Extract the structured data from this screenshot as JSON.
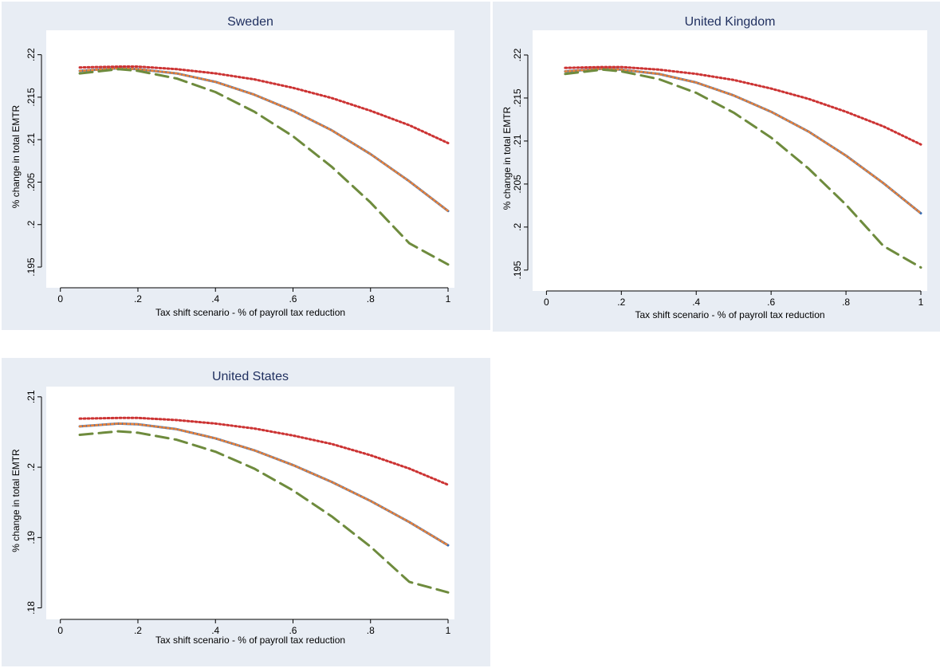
{
  "chart_data": [
    {
      "type": "line",
      "title": "Sweden",
      "xlabel": "Tax shift scenario - % of payroll tax reduction",
      "ylabel": "% change in total EMTR",
      "xlim": [
        -0.02,
        1.0
      ],
      "ylim": [
        0.1935,
        0.2225
      ],
      "xticks": [
        0,
        0.2,
        0.4,
        0.6,
        0.8,
        1
      ],
      "xtick_labels": [
        "0",
        ".2",
        ".4",
        ".6",
        ".8",
        "1"
      ],
      "yticks": [
        0.195,
        0.2,
        0.205,
        0.21,
        0.215,
        0.22
      ],
      "ytick_labels": [
        ".195",
        ".2",
        ".205",
        ".21",
        ".215",
        ".22"
      ],
      "grid": false,
      "x": [
        0.05,
        0.15,
        0.2,
        0.3,
        0.4,
        0.5,
        0.6,
        0.7,
        0.8,
        0.9,
        1.0
      ],
      "series": [
        {
          "style": "solid",
          "color": "#3a6fb5",
          "values": [
            0.2181,
            0.2184,
            0.2183,
            0.2178,
            0.2168,
            0.2153,
            0.2134,
            0.2111,
            0.2083,
            0.2051,
            0.2016
          ]
        },
        {
          "style": "dot-overlay",
          "color": "#e8823a",
          "values": [
            0.2181,
            0.2184,
            0.2183,
            0.2178,
            0.2168,
            0.2153,
            0.2134,
            0.2111,
            0.2083,
            0.2051,
            0.2016
          ]
        },
        {
          "style": "dash",
          "color": "#6e8b3d",
          "values": [
            0.2178,
            0.2183,
            0.2181,
            0.2172,
            0.2156,
            0.2133,
            0.2104,
            0.2068,
            0.2026,
            0.1978,
            0.1953
          ]
        },
        {
          "style": "dot",
          "color": "#cc3333",
          "values": [
            0.2185,
            0.2186,
            0.2186,
            0.2183,
            0.2178,
            0.2171,
            0.2161,
            0.2149,
            0.2134,
            0.2117,
            0.2096
          ]
        }
      ]
    },
    {
      "type": "line",
      "title": "United Kingdom",
      "xlabel": "Tax shift scenario - % of payroll tax reduction",
      "ylabel": "% change in total EMTR",
      "xlim": [
        -0.02,
        1.0
      ],
      "ylim": [
        0.1935,
        0.2225
      ],
      "xticks": [
        0,
        0.2,
        0.4,
        0.6,
        0.8,
        1
      ],
      "xtick_labels": [
        "0",
        ".2",
        ".4",
        ".6",
        ".8",
        "1"
      ],
      "yticks": [
        0.195,
        0.2,
        0.205,
        0.21,
        0.215,
        0.22
      ],
      "ytick_labels": [
        ".195",
        ".2",
        ".205",
        ".21",
        ".215",
        ".22"
      ],
      "grid": false,
      "x": [
        0.05,
        0.15,
        0.2,
        0.3,
        0.4,
        0.5,
        0.6,
        0.7,
        0.8,
        0.9,
        1.0
      ],
      "series": [
        {
          "style": "solid",
          "color": "#3a6fb5",
          "values": [
            0.2181,
            0.2184,
            0.2183,
            0.2178,
            0.2168,
            0.2153,
            0.2134,
            0.2111,
            0.2083,
            0.2051,
            0.2016
          ]
        },
        {
          "style": "dot-overlay",
          "color": "#e8823a",
          "values": [
            0.2181,
            0.2184,
            0.2183,
            0.2178,
            0.2168,
            0.2153,
            0.2134,
            0.2111,
            0.2083,
            0.2051,
            0.2016
          ]
        },
        {
          "style": "dash",
          "color": "#6e8b3d",
          "values": [
            0.2178,
            0.2183,
            0.2181,
            0.2172,
            0.2156,
            0.2133,
            0.2104,
            0.2068,
            0.2026,
            0.1978,
            0.1953
          ]
        },
        {
          "style": "dot",
          "color": "#cc3333",
          "values": [
            0.2185,
            0.2186,
            0.2186,
            0.2183,
            0.2178,
            0.2171,
            0.2161,
            0.2149,
            0.2134,
            0.2117,
            0.2096
          ]
        }
      ]
    },
    {
      "type": "line",
      "title": "United States",
      "xlabel": "Tax shift scenario - % of payroll tax reduction",
      "ylabel": "% change in total EMTR",
      "xlim": [
        -0.02,
        1.0
      ],
      "ylim": [
        0.1795,
        0.211
      ],
      "xticks": [
        0,
        0.2,
        0.4,
        0.6,
        0.8,
        1
      ],
      "xtick_labels": [
        "0",
        ".2",
        ".4",
        ".6",
        ".8",
        "1"
      ],
      "yticks": [
        0.18,
        0.19,
        0.2,
        0.21
      ],
      "ytick_labels": [
        ".18",
        ".19",
        ".2",
        ".21"
      ],
      "grid": false,
      "x": [
        0.05,
        0.15,
        0.2,
        0.3,
        0.4,
        0.5,
        0.6,
        0.7,
        0.8,
        0.9,
        1.0
      ],
      "series": [
        {
          "style": "solid",
          "color": "#3a6fb5",
          "values": [
            0.2058,
            0.2062,
            0.2061,
            0.2054,
            0.2041,
            0.2024,
            0.2003,
            0.1979,
            0.1952,
            0.1922,
            0.1889
          ]
        },
        {
          "style": "dot-overlay",
          "color": "#e8823a",
          "values": [
            0.2058,
            0.2062,
            0.2061,
            0.2054,
            0.2041,
            0.2024,
            0.2003,
            0.1979,
            0.1952,
            0.1922,
            0.1889
          ]
        },
        {
          "style": "dash",
          "color": "#6e8b3d",
          "values": [
            0.2046,
            0.2051,
            0.2049,
            0.2039,
            0.2022,
            0.1998,
            0.1967,
            0.193,
            0.1887,
            0.1837,
            0.1822
          ]
        },
        {
          "style": "dot",
          "color": "#cc3333",
          "values": [
            0.2069,
            0.207,
            0.207,
            0.2067,
            0.2062,
            0.2055,
            0.2045,
            0.2033,
            0.2017,
            0.1998,
            0.1975
          ]
        }
      ]
    }
  ],
  "colors": {
    "outer_background": "#e8edf4",
    "plot_background": "#ffffff",
    "title_color": "#1f2f5f"
  }
}
